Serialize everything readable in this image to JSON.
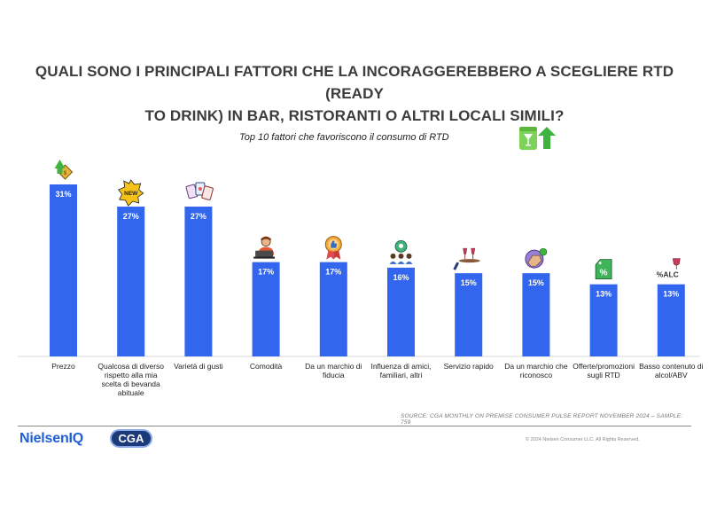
{
  "title_line1": "QUALI SONO I PRINCIPALI FATTORI CHE LA INCORAGGEREBBERO A SCEGLIERE RTD (READY",
  "title_line2": "TO DRINK) IN BAR, RISTORANTI O ALTRI LOCALI SIMILI?",
  "subtitle": "Top 10 fattori che favoriscono il consumo di RTD",
  "source": "SOURCE: CGA MONTHLY ON PREMISE CONSUMER PULSE REPORT NOVEMBER 2024  – SAMPLE: 759",
  "brand_nielsen": "NielsenIQ",
  "brand_cga": "CGA",
  "copyright": "© 2024 Nielsen Consumer LLC. All Rights Reserved.",
  "chart_data": {
    "type": "bar",
    "title": "Top 10 fattori che favoriscono il consumo di RTD",
    "unit": "%",
    "ylim": [
      0,
      31
    ],
    "grid": false,
    "categories": [
      "Prezzo",
      "Qualcosa di diverso rispetto alla mia scelta di bevanda abituale",
      "Varietà di gusti",
      "Comodità",
      "Da un marchio di fiducia",
      "Influenza di amici, familiari, altri",
      "Servizio rapido",
      "Da un marchio che riconosco",
      "Offerte/promozioni sugli RTD",
      "Basso contenuto di alcol/ABV"
    ],
    "values": [
      31,
      27,
      27,
      17,
      17,
      16,
      15,
      15,
      13,
      13
    ],
    "icons": [
      "price-tag-up-icon",
      "new-badge-icon",
      "flavors-cards-icon",
      "person-laptop-icon",
      "trusted-brand-ribbon-icon",
      "people-group-icon",
      "waiter-tray-drinks-icon",
      "brand-recognition-hand-icon",
      "discount-tag-icon",
      "low-abv-icon"
    ],
    "icon_text_alc": "%ALC"
  }
}
